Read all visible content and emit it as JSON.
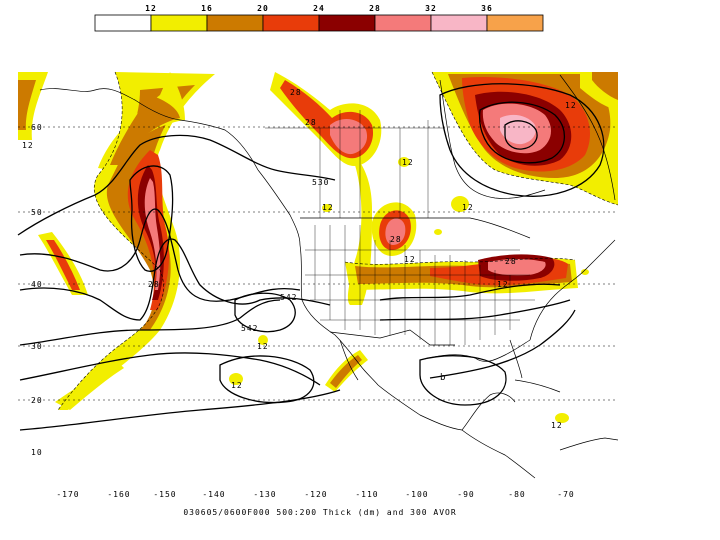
{
  "legend": {
    "ticks": [
      "12",
      "16",
      "20",
      "24",
      "28",
      "32",
      "36"
    ],
    "colors": [
      "#ffffff",
      "#f2ee00",
      "#cc7a00",
      "#e83c0a",
      "#8b0000",
      "#f47a7a",
      "#f8b6c6",
      "#f7a24a"
    ]
  },
  "map": {
    "lat_labels": [
      "60",
      "50",
      "40",
      "30",
      "20",
      "10"
    ],
    "lon_labels": [
      "-170",
      "-160",
      "-150",
      "-140",
      "-130",
      "-120",
      "-110",
      "-100",
      "-90",
      "-80",
      "-70"
    ],
    "contour_labels": [
      "12",
      "12",
      "12",
      "12",
      "12",
      "12",
      "12",
      "12",
      "12",
      "12",
      "530",
      "542",
      "542",
      "28",
      "28",
      "28",
      "28",
      "28"
    ],
    "pressure_symbol": "b",
    "caption": "030605/0600F000 500:200 Thick (dm) and 300 AVOR"
  }
}
